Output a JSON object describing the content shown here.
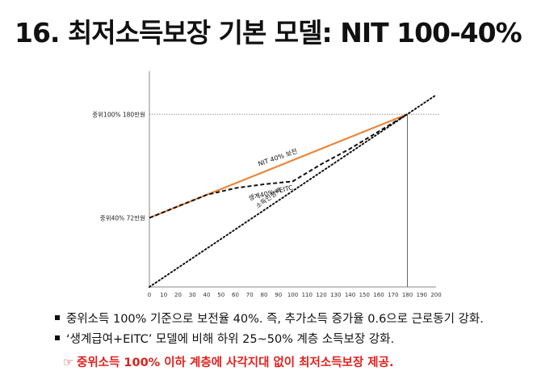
{
  "title": "16. 최저소득보장 기본 모델: NIT 100-40%",
  "bullets": [
    "중위소득 100% 기준으로 보전율 40%. 즉, 추가소득 증가율 0.6으로 근로동기 강화.",
    "‘생계급여+EITC’ 모델에 비해 하위 25~50% 계층 소득보장 강화."
  ],
  "note": {
    "icon": "pointing-hand-icon",
    "icon_glyph": "☞",
    "text": "중위소득 100% 이하 계층에 사각지대 없이 최저소득보장 제공.",
    "color": "#e0201c"
  },
  "chart_data": {
    "type": "line",
    "x_ticks": [
      0,
      10,
      20,
      30,
      40,
      50,
      60,
      70,
      80,
      90,
      100,
      110,
      120,
      130,
      140,
      150,
      160,
      170,
      180,
      190,
      200
    ],
    "xlim": [
      0,
      200
    ],
    "ylim": [
      0,
      240
    ],
    "reference_lines": [
      {
        "label": "중위100% 180만원",
        "y": 180
      },
      {
        "label": "중위40% 72만원",
        "y": 72
      }
    ],
    "vertical_line_x": 180,
    "series": [
      {
        "name": "NIT 40% 보전",
        "style": "solid",
        "color": "#e8873a",
        "x": [
          0,
          180
        ],
        "y": [
          72,
          180
        ]
      },
      {
        "name": "생계40%+EITC",
        "style": "dashed",
        "color": "#111111",
        "x": [
          0,
          20,
          40,
          60,
          80,
          100,
          120,
          140,
          160,
          180
        ],
        "y": [
          72,
          84,
          96,
          103,
          107,
          110,
          128,
          144,
          162,
          180
        ]
      },
      {
        "name": "소득인정액",
        "style": "dotted",
        "color": "#111111",
        "x": [
          0,
          200
        ],
        "y": [
          0,
          200
        ]
      }
    ]
  }
}
